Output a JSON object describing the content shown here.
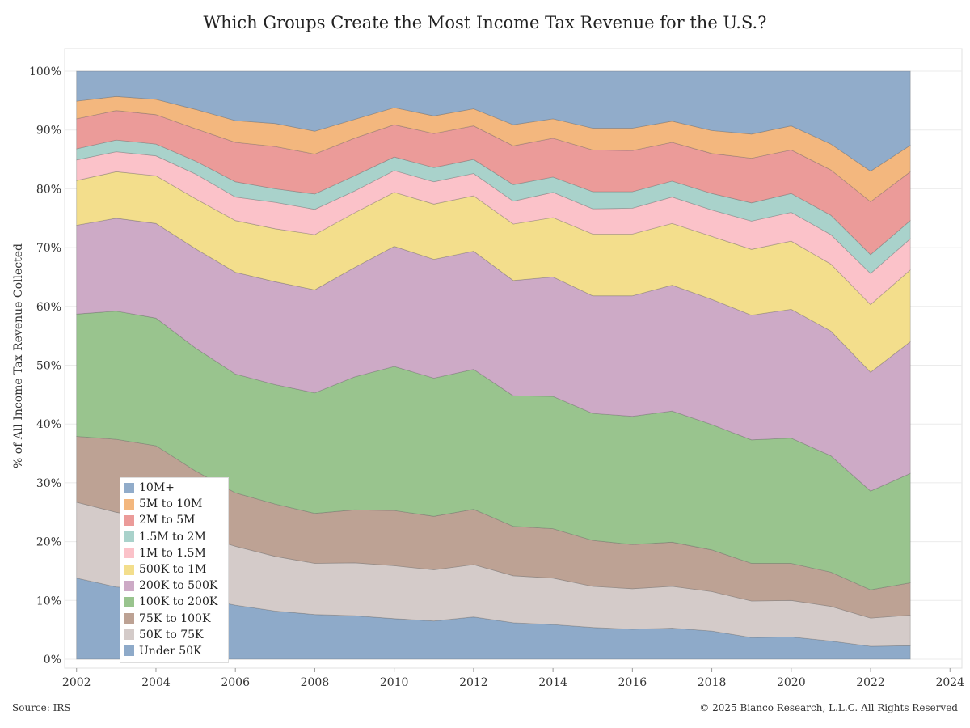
{
  "title": "Which Groups Create the Most Income Tax Revenue for the U.S.?",
  "source": "Source: IRS",
  "copyright": "© 2025 Bianco Research, L.L.C. All Rights Reserved",
  "chart_data": {
    "type": "area",
    "stacked": true,
    "title": "Which Groups Create the Most Income Tax Revenue for the U.S.?",
    "ylabel": "% of All Income Tax Revenue Collected",
    "xlabel": "",
    "xlim": [
      2001.7,
      2024.3
    ],
    "ylim": [
      0,
      100
    ],
    "x_ticks": [
      2002,
      2004,
      2006,
      2008,
      2010,
      2012,
      2014,
      2016,
      2018,
      2020,
      2022,
      2024
    ],
    "y_ticks": [
      {
        "value": 0,
        "label": "0%"
      },
      {
        "value": 10,
        "label": "10%"
      },
      {
        "value": 20,
        "label": "20%"
      },
      {
        "value": 30,
        "label": "30%"
      },
      {
        "value": 40,
        "label": "40%"
      },
      {
        "value": 50,
        "label": "50%"
      },
      {
        "value": 60,
        "label": "60%"
      },
      {
        "value": 70,
        "label": "70%"
      },
      {
        "value": 80,
        "label": "80%"
      },
      {
        "value": 90,
        "label": "90%"
      },
      {
        "value": 100,
        "label": "100%"
      }
    ],
    "grid": "horizontal",
    "legend_position": "bottom-left",
    "x": [
      2002,
      2003,
      2004,
      2005,
      2006,
      2007,
      2008,
      2009,
      2010,
      2011,
      2012,
      2013,
      2014,
      2015,
      2016,
      2017,
      2018,
      2019,
      2020,
      2021,
      2022,
      2023
    ],
    "series": [
      {
        "name": "Under 50K",
        "color": "#8eaac9",
        "cumulative": [
          13.8,
          12.3,
          11.9,
          10.5,
          9.2,
          8.2,
          7.6,
          7.4,
          6.9,
          6.5,
          7.2,
          6.2,
          5.9,
          5.4,
          5.1,
          5.3,
          4.8,
          3.7,
          3.8,
          3.1,
          2.2,
          2.3
        ]
      },
      {
        "name": "50K to 75K",
        "color": "#d4cbc9",
        "cumulative": [
          26.7,
          25.0,
          23.9,
          21.3,
          19.2,
          17.5,
          16.3,
          16.4,
          15.9,
          15.2,
          16.1,
          14.2,
          13.8,
          12.4,
          12.0,
          12.4,
          11.5,
          9.9,
          10.0,
          9.0,
          7.0,
          7.5
        ]
      },
      {
        "name": "75K to 100K",
        "color": "#bda294",
        "cumulative": [
          37.9,
          37.4,
          36.3,
          32.0,
          28.3,
          26.4,
          24.8,
          25.4,
          25.3,
          24.3,
          25.5,
          22.6,
          22.2,
          20.2,
          19.5,
          19.9,
          18.6,
          16.3,
          16.3,
          14.8,
          11.8,
          13.0
        ]
      },
      {
        "name": "100K to 200K",
        "color": "#99c48e",
        "cumulative": [
          58.7,
          59.2,
          58.0,
          52.9,
          48.5,
          46.7,
          45.3,
          48.0,
          49.8,
          47.8,
          49.3,
          44.8,
          44.7,
          41.8,
          41.3,
          42.2,
          39.9,
          37.3,
          37.6,
          34.6,
          28.6,
          31.6
        ]
      },
      {
        "name": "200K to 500K",
        "color": "#cdaac6",
        "cumulative": [
          73.8,
          75.0,
          74.1,
          69.8,
          65.8,
          64.2,
          62.8,
          66.6,
          70.2,
          68.0,
          69.4,
          64.4,
          65.0,
          61.8,
          61.8,
          63.6,
          61.2,
          58.5,
          59.5,
          55.8,
          48.8,
          54.0
        ]
      },
      {
        "name": "500K to 1M",
        "color": "#f3de8c",
        "cumulative": [
          81.4,
          82.9,
          82.2,
          78.3,
          74.6,
          73.2,
          72.2,
          75.9,
          79.4,
          77.4,
          78.8,
          74.0,
          75.1,
          72.3,
          72.3,
          74.1,
          71.9,
          69.7,
          71.1,
          67.2,
          60.3,
          66.2
        ]
      },
      {
        "name": "1M to 1.5M",
        "color": "#fbc2c9",
        "cumulative": [
          84.9,
          86.3,
          85.6,
          82.5,
          78.6,
          77.7,
          76.5,
          79.6,
          83.1,
          81.2,
          82.6,
          77.9,
          79.4,
          76.6,
          76.7,
          78.6,
          76.4,
          74.5,
          76.0,
          72.2,
          65.6,
          71.5
        ]
      },
      {
        "name": "1.5M to 2M",
        "color": "#a9d2cb",
        "cumulative": [
          86.8,
          88.3,
          87.6,
          84.7,
          81.2,
          80.0,
          79.1,
          82.2,
          85.4,
          83.6,
          85.0,
          80.7,
          82.0,
          79.5,
          79.5,
          81.3,
          79.2,
          77.6,
          79.2,
          75.5,
          68.8,
          74.6
        ]
      },
      {
        "name": "2M to 5M",
        "color": "#eb9b99",
        "cumulative": [
          91.9,
          93.3,
          92.6,
          90.2,
          87.9,
          87.2,
          85.9,
          88.6,
          90.9,
          89.4,
          90.7,
          87.3,
          88.6,
          86.6,
          86.5,
          87.9,
          86.0,
          85.2,
          86.6,
          83.2,
          77.8,
          82.9
        ]
      },
      {
        "name": "5M to 10M",
        "color": "#f3b77e",
        "cumulative": [
          94.9,
          95.7,
          95.2,
          93.5,
          91.6,
          91.1,
          89.8,
          91.8,
          93.8,
          92.4,
          93.6,
          90.9,
          91.9,
          90.3,
          90.3,
          91.5,
          89.9,
          89.3,
          90.7,
          87.6,
          83.0,
          87.4
        ]
      },
      {
        "name": "10M+",
        "color": "#91acca",
        "cumulative": [
          100,
          100,
          100,
          100,
          100,
          100,
          100,
          100,
          100,
          100,
          100,
          100,
          100,
          100,
          100,
          100,
          100,
          100,
          100,
          100,
          100,
          100
        ]
      }
    ]
  }
}
